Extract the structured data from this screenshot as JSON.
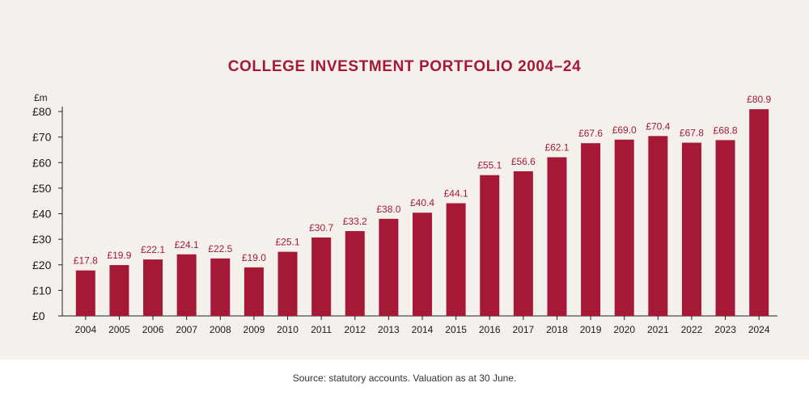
{
  "chart_data": {
    "type": "bar",
    "title": "COLLEGE INVESTMENT PORTFOLIO 2004–24",
    "unit_label": "£m",
    "categories": [
      "2004",
      "2005",
      "2006",
      "2007",
      "2008",
      "2009",
      "2010",
      "2011",
      "2012",
      "2013",
      "2014",
      "2015",
      "2016",
      "2017",
      "2018",
      "2019",
      "2020",
      "2021",
      "2022",
      "2023",
      "2024"
    ],
    "values": [
      17.8,
      19.9,
      22.1,
      24.1,
      22.5,
      19.0,
      25.1,
      30.7,
      33.2,
      38.0,
      40.4,
      44.1,
      55.1,
      56.6,
      62.1,
      67.6,
      69.0,
      70.4,
      67.8,
      68.8,
      80.9
    ],
    "value_labels": [
      "£17.8",
      "£19.9",
      "£22.1",
      "£24.1",
      "£22.5",
      "£19.0",
      "£25.1",
      "£30.7",
      "£33.2",
      "£38.0",
      "£40.4",
      "£44.1",
      "£55.1",
      "£56.6",
      "£62.1",
      "£67.6",
      "£69.0",
      "£70.4",
      "£67.8",
      "£68.8",
      "£80.9"
    ],
    "y_ticks": [
      0,
      10,
      20,
      30,
      40,
      50,
      60,
      70,
      80
    ],
    "y_tick_labels": [
      "£0",
      "£10",
      "£20",
      "£30",
      "£40",
      "£50",
      "£60",
      "£70",
      "£80"
    ],
    "ylim": [
      0,
      80
    ],
    "grid": false,
    "colors": {
      "bar": "#a51936",
      "label": "#a51936",
      "title": "#a51936"
    }
  },
  "footer": {
    "source": "Source: statutory accounts. Valuation as at 30 June."
  }
}
